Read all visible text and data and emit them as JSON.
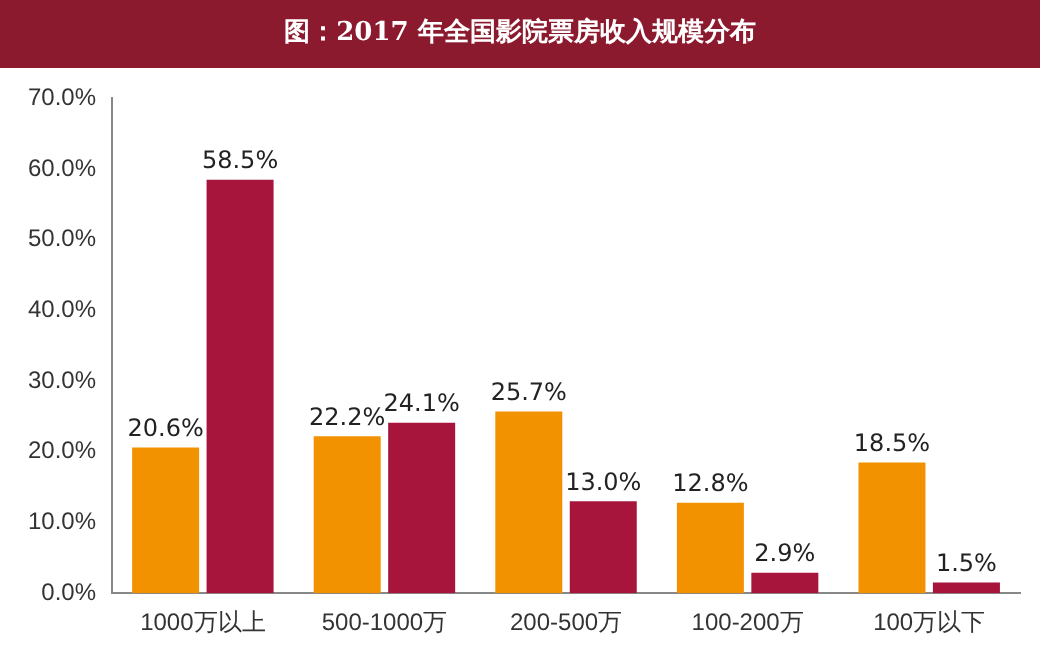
{
  "chart_data": {
    "type": "bar",
    "title": "图：2017 年全国影院票房收入规模分布",
    "categories": [
      "1000万以上",
      "500-1000万",
      "200-500万",
      "100-200万",
      "100万以下"
    ],
    "series": [
      {
        "color": "#f39200",
        "values": [
          20.6,
          22.2,
          25.7,
          12.8,
          18.5
        ],
        "value_labels": [
          "20.6%",
          "22.2%",
          "25.7%",
          "12.8%",
          "18.5%"
        ]
      },
      {
        "color": "#a8153c",
        "values": [
          58.5,
          24.1,
          13.0,
          2.9,
          1.5
        ],
        "value_labels": [
          "58.5%",
          "24.1%",
          "13.0%",
          "2.9%",
          "1.5%"
        ]
      }
    ],
    "ylim": [
      0,
      70
    ],
    "yticks": [
      {
        "value": 0,
        "label": "0.0%"
      },
      {
        "value": 10,
        "label": "10.0%"
      },
      {
        "value": 20,
        "label": "20.0%"
      },
      {
        "value": 30,
        "label": "30.0%"
      },
      {
        "value": 40,
        "label": "40.0%"
      },
      {
        "value": 50,
        "label": "50.0%"
      },
      {
        "value": 60,
        "label": "60.0%"
      },
      {
        "value": 70,
        "label": "70.0%"
      }
    ],
    "grid": false,
    "legend": false
  }
}
